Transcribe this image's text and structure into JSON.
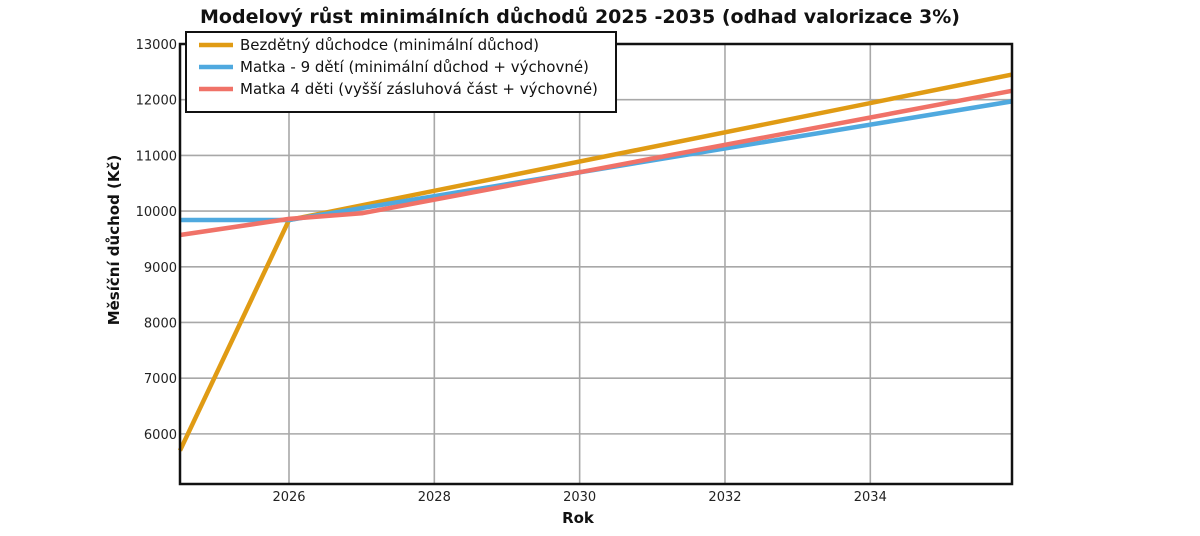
{
  "chart_data": {
    "type": "line",
    "title": "Modelový růst minimálních důchodů 2025 -2035 (odhad valorizace 3%)",
    "xlabel": "Rok",
    "ylabel": "Měsíční důchod (Kč)",
    "xlim": [
      2024.5,
      2035.95
    ],
    "ylim": [
      5100,
      13000
    ],
    "xticks": [
      2026,
      2028,
      2030,
      2032,
      2034
    ],
    "yticks": [
      6000,
      7000,
      8000,
      9000,
      10000,
      11000,
      12000,
      13000
    ],
    "grid": true,
    "legend_position": "top-left",
    "series": [
      {
        "name": "Bezdětný důchodce (minimální důchod)",
        "color": "#e09b14",
        "x": [
          2024.5,
          2026,
          2035.95
        ],
        "y": [
          5700,
          9840,
          12450
        ]
      },
      {
        "name": "Matka - 9 dětí (minimální důchod + výchovné)",
        "color": "#4fa9df",
        "x": [
          2024.5,
          2026,
          2035.95
        ],
        "y": [
          9840,
          9840,
          11970
        ]
      },
      {
        "name": "Matka 4 děti (vyšší zásluhová část + výchovné)",
        "color": "#f07268",
        "x": [
          2024.5,
          2026,
          2027,
          2035.95
        ],
        "y": [
          9570,
          9860,
          9960,
          12160
        ]
      }
    ]
  }
}
